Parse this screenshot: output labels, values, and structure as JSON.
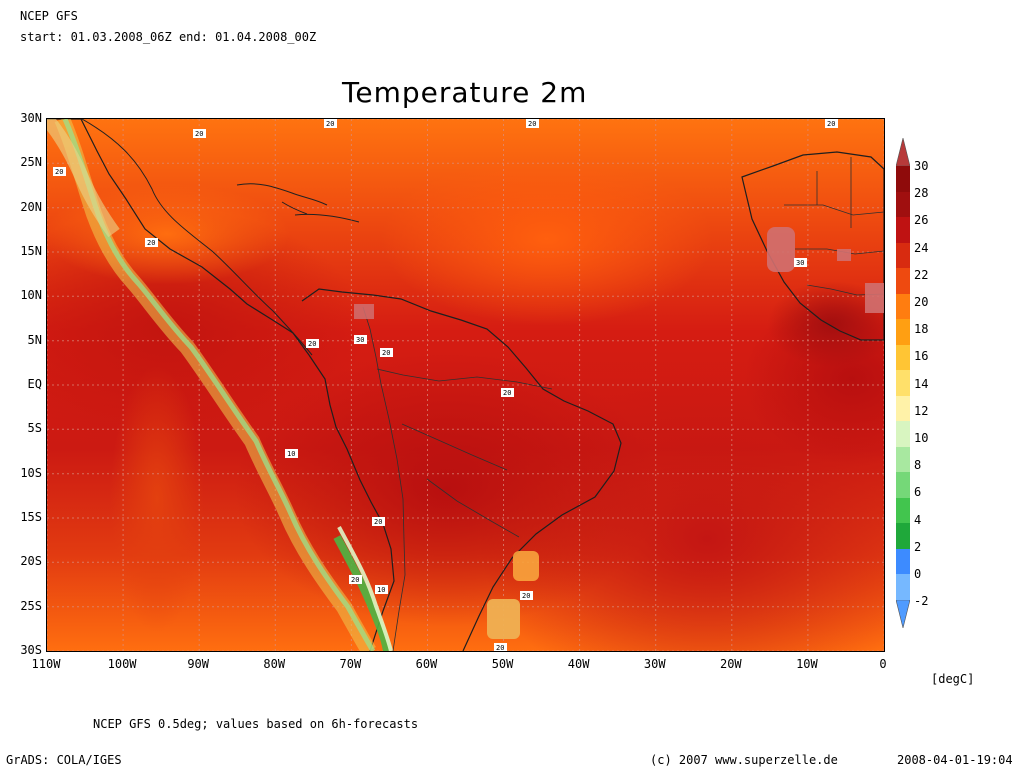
{
  "header": {
    "line1": "NCEP GFS",
    "line2": "start: 01.03.2008_06Z end: 01.04.2008_00Z"
  },
  "title": "Temperature 2m",
  "axes": {
    "y_labels": [
      "30N",
      "25N",
      "20N",
      "15N",
      "10N",
      "5N",
      "EQ",
      "5S",
      "10S",
      "15S",
      "20S",
      "25S",
      "30S"
    ],
    "x_labels": [
      "110W",
      "100W",
      "90W",
      "80W",
      "70W",
      "60W",
      "50W",
      "40W",
      "30W",
      "20W",
      "10W",
      "0"
    ]
  },
  "map_labels": {
    "a": "20",
    "b": "20",
    "c": "20",
    "d": "20",
    "e": "20",
    "f": "20",
    "g": "20",
    "h": "20",
    "i": "30",
    "j": "30",
    "k": "20",
    "l": "20",
    "m": "10",
    "n": "20",
    "o": "20",
    "p": "10",
    "q": "20"
  },
  "colorbar": {
    "labels": [
      "30",
      "28",
      "26",
      "24",
      "22",
      "20",
      "18",
      "16",
      "14",
      "12",
      "10",
      "8",
      "6",
      "4",
      "2",
      "0",
      "-2"
    ],
    "unit": "[degC]",
    "colors": [
      "#8f0b0b",
      "#a00f0f",
      "#bf1212",
      "#d82b10",
      "#ee4a10",
      "#ff7d10",
      "#ff9f12",
      "#ffc534",
      "#ffe06a",
      "#fff2a8",
      "#d8f5c0",
      "#a8e8a0",
      "#75d878",
      "#42c54e",
      "#1fa83a",
      "#3d8bff",
      "#76b8ff"
    ]
  },
  "footer": {
    "note": "NCEP GFS 0.5deg; values based on 6h-forecasts",
    "grads": "GrADS: COLA/IGES",
    "copyright": "(c) 2007 www.superzelle.de",
    "timestamp": "2008-04-01-19:04"
  }
}
